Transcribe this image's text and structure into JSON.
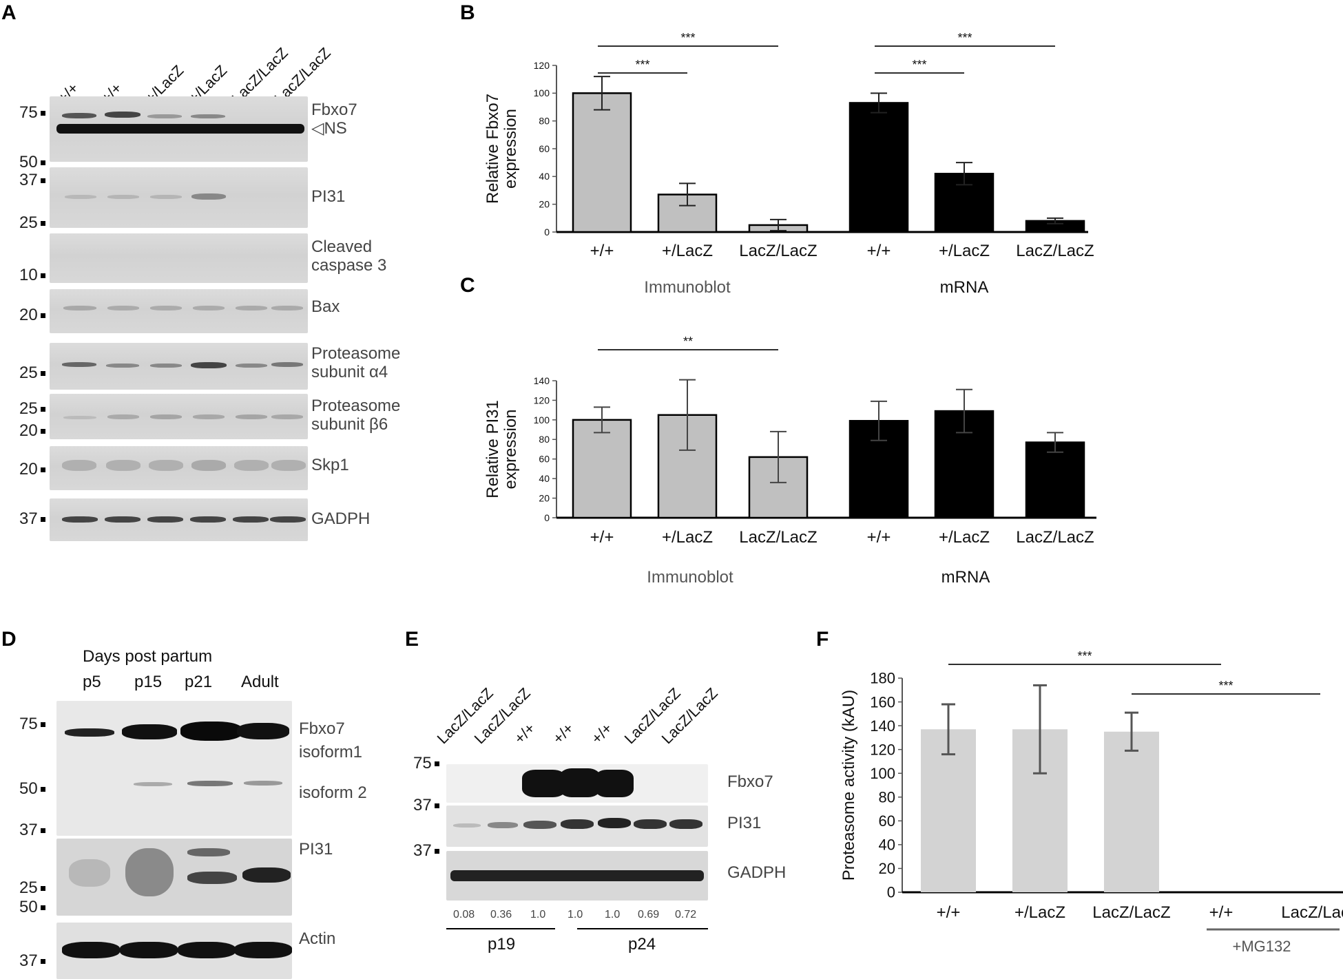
{
  "panels": {
    "A": "A",
    "B": "B",
    "C": "C",
    "D": "D",
    "E": "E",
    "F": "F"
  },
  "panelA": {
    "lanes": [
      "+/+",
      "+/+",
      "+/LacZ",
      "+/LacZ",
      "LacZ/LacZ",
      "LacZ/LacZ"
    ],
    "rows": [
      {
        "label": "Fbxo7\n◁NS",
        "mw": [
          "75",
          "50"
        ]
      },
      {
        "label": "PI31",
        "mw": [
          "37",
          "25"
        ]
      },
      {
        "label": "Cleaved\ncaspase 3",
        "mw": [
          "10"
        ]
      },
      {
        "label": "Bax",
        "mw": [
          "20"
        ]
      },
      {
        "label": "Proteasome\nsubunit α4",
        "mw": [
          "25"
        ]
      },
      {
        "label": "Proteasome\nsubunit β6",
        "mw": [
          "25",
          "20"
        ]
      },
      {
        "label": "Skp1",
        "mw": [
          "20"
        ]
      },
      {
        "label": "GADPH",
        "mw": [
          "37"
        ]
      }
    ]
  },
  "panelD": {
    "heading": "Days post partum",
    "lanes": [
      "p5",
      "p15",
      "p21",
      "Adult"
    ],
    "labels": {
      "fbxo7": "Fbxo7\nisoform1",
      "iso2": "isoform 2",
      "pi31": "PI31",
      "actin": "Actin"
    },
    "mw": [
      "75",
      "50",
      "37",
      "25",
      "50",
      "37"
    ]
  },
  "panelE": {
    "lanes": [
      "LacZ/LacZ",
      "LacZ/LacZ",
      "+/+",
      "+/+",
      "+/+",
      "LacZ/LacZ",
      "LacZ/LacZ"
    ],
    "labels": {
      "fbxo7": "Fbxo7",
      "pi31": "PI31",
      "gadph": "GADPH"
    },
    "mw": [
      "75",
      "37",
      "37"
    ],
    "quant": [
      "0.08",
      "0.36",
      "1.0",
      "1.0",
      "1.0",
      "0.69",
      "0.72"
    ],
    "groups": [
      "p19",
      "p24"
    ]
  },
  "chart_data": [
    {
      "panel": "B",
      "type": "bar",
      "ylabel": "Relative Fbxo7\nexpression",
      "ylim": [
        0,
        120
      ],
      "yticks": [
        0,
        20,
        40,
        60,
        80,
        100,
        120
      ],
      "categories": [
        "+/+",
        "+/LacZ",
        "LacZ/LacZ",
        "+/+",
        "+/LacZ",
        "LacZ/LacZ"
      ],
      "values": [
        100,
        27,
        5,
        93,
        42,
        8
      ],
      "errors": [
        12,
        8,
        4,
        7,
        8,
        2
      ],
      "colors": [
        "#c0c0c0",
        "#c0c0c0",
        "#c0c0c0",
        "#000000",
        "#000000",
        "#000000"
      ],
      "groups": [
        "Immunoblot",
        "mRNA"
      ],
      "significance": [
        {
          "from": 0,
          "to": 1,
          "label": "***"
        },
        {
          "from": 0,
          "to": 2,
          "label": "***"
        },
        {
          "from": 3,
          "to": 4,
          "label": "***"
        },
        {
          "from": 3,
          "to": 5,
          "label": "***"
        }
      ]
    },
    {
      "panel": "C",
      "type": "bar",
      "ylabel": "Relative PI31\nexpression",
      "ylim": [
        0,
        140
      ],
      "yticks": [
        0,
        20,
        40,
        60,
        80,
        100,
        120,
        140
      ],
      "categories": [
        "+/+",
        "+/LacZ",
        "LacZ/LacZ",
        "+/+",
        "+/LacZ",
        "LacZ/LacZ"
      ],
      "values": [
        100,
        105,
        62,
        99,
        109,
        77
      ],
      "errors": [
        13,
        36,
        26,
        20,
        22,
        10
      ],
      "colors": [
        "#c0c0c0",
        "#c0c0c0",
        "#c0c0c0",
        "#000000",
        "#000000",
        "#000000"
      ],
      "groups": [
        "Immunoblot",
        "mRNA"
      ],
      "significance": [
        {
          "from": 0,
          "to": 2,
          "label": "**"
        }
      ]
    },
    {
      "panel": "F",
      "type": "bar",
      "ylabel": "Proteasome activity (kAU)",
      "ylim": [
        0,
        180
      ],
      "yticks": [
        0,
        20,
        40,
        60,
        80,
        100,
        120,
        140,
        160,
        180
      ],
      "categories": [
        "+/+",
        "+/LacZ",
        "LacZ/LacZ",
        "+/+",
        "LacZ/LacZ"
      ],
      "values": [
        137,
        137,
        135,
        0,
        0
      ],
      "errors": [
        21,
        37,
        16,
        0,
        0
      ],
      "colors": [
        "#d3d3d3",
        "#d3d3d3",
        "#d3d3d3",
        "#d3d3d3",
        "#d3d3d3"
      ],
      "treatment_label": "+MG132",
      "significance": [
        {
          "from": 0,
          "to": 3,
          "label": "***"
        },
        {
          "from": 2,
          "to": 4,
          "label": "***"
        }
      ]
    }
  ]
}
